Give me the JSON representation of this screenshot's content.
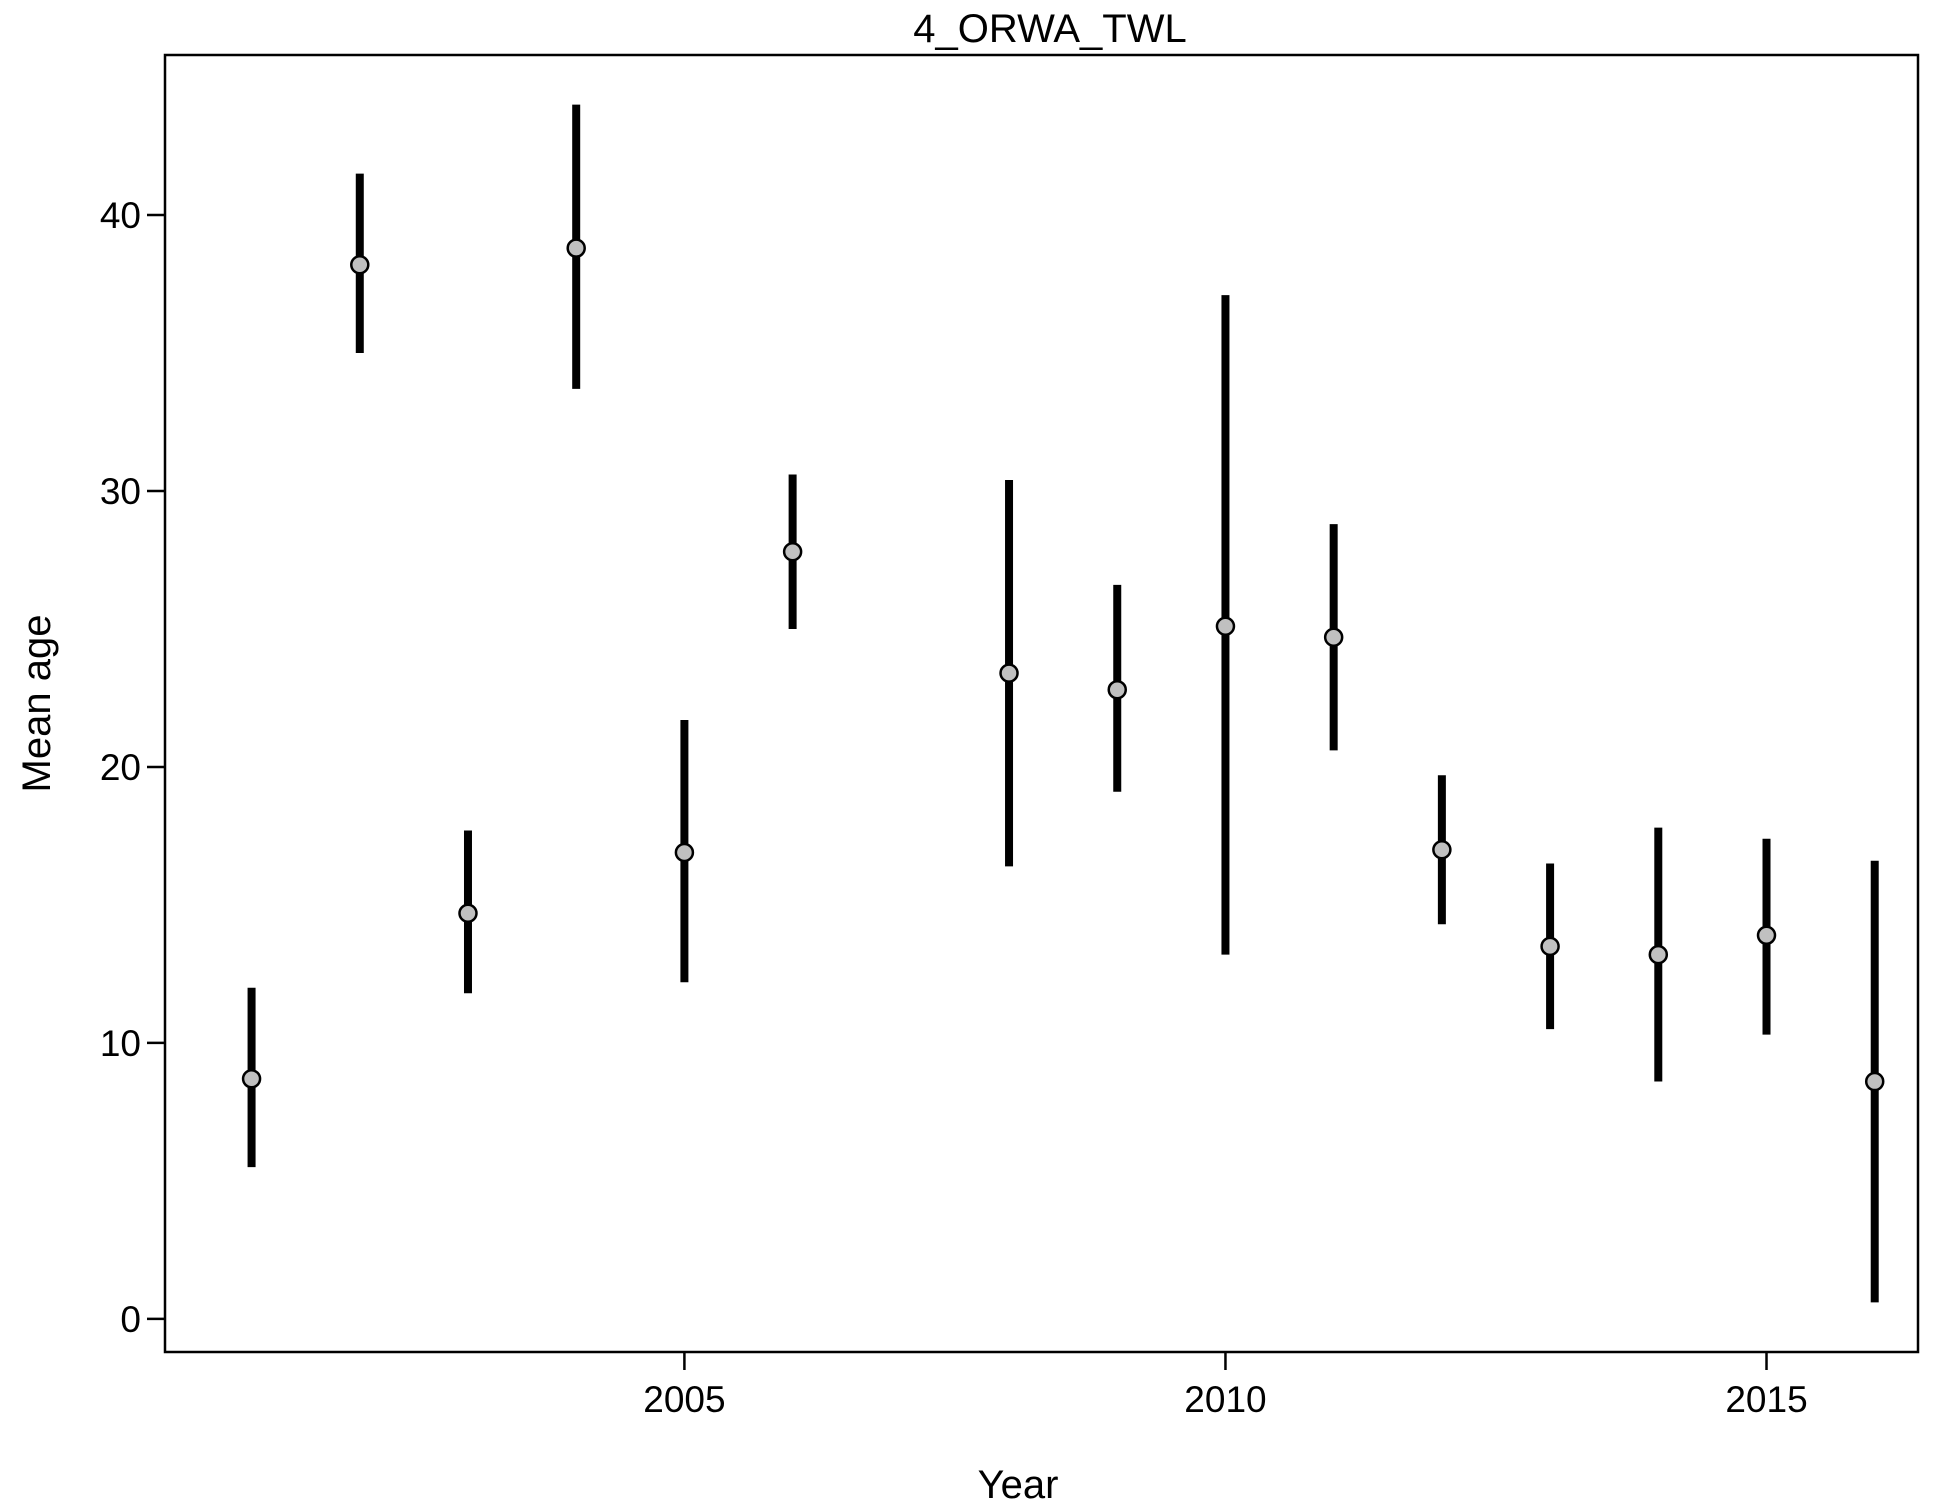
{
  "chart_data": {
    "type": "scatter",
    "title": "4_ORWA_TWL",
    "xlabel": "Year",
    "ylabel": "Mean age",
    "xlim": [
      2000.2,
      2016.4
    ],
    "ylim": [
      -1.2,
      45.8
    ],
    "x_ticks": [
      2005,
      2010,
      2015
    ],
    "y_ticks": [
      0,
      10,
      20,
      30,
      40
    ],
    "grid": false,
    "legend": "none",
    "series": [
      {
        "points": [
          {
            "x": 2001,
            "y": 8.7,
            "lower": 5.5,
            "upper": 12.0
          },
          {
            "x": 2002,
            "y": 38.2,
            "lower": 35.0,
            "upper": 41.5
          },
          {
            "x": 2003,
            "y": 14.7,
            "lower": 11.8,
            "upper": 17.7
          },
          {
            "x": 2004,
            "y": 38.8,
            "lower": 33.7,
            "upper": 44.0
          },
          {
            "x": 2005,
            "y": 16.9,
            "lower": 12.2,
            "upper": 21.7
          },
          {
            "x": 2006,
            "y": 27.8,
            "lower": 25.0,
            "upper": 30.6
          },
          {
            "x": 2008,
            "y": 23.4,
            "lower": 16.4,
            "upper": 30.4
          },
          {
            "x": 2009,
            "y": 22.8,
            "lower": 19.1,
            "upper": 26.6
          },
          {
            "x": 2010,
            "y": 25.1,
            "lower": 13.2,
            "upper": 37.1
          },
          {
            "x": 2011,
            "y": 24.7,
            "lower": 20.6,
            "upper": 28.8
          },
          {
            "x": 2012,
            "y": 17.0,
            "lower": 14.3,
            "upper": 19.7
          },
          {
            "x": 2013,
            "y": 13.5,
            "lower": 10.5,
            "upper": 16.5
          },
          {
            "x": 2014,
            "y": 13.2,
            "lower": 8.6,
            "upper": 17.8
          },
          {
            "x": 2015,
            "y": 13.9,
            "lower": 10.3,
            "upper": 17.4
          },
          {
            "x": 2016,
            "y": 8.6,
            "lower": 0.6,
            "upper": 16.6
          }
        ]
      }
    ],
    "colors": {
      "point_fill": "#c0c0c0",
      "point_stroke": "#000000",
      "errorbar": "#000000",
      "axis": "#000000"
    }
  }
}
